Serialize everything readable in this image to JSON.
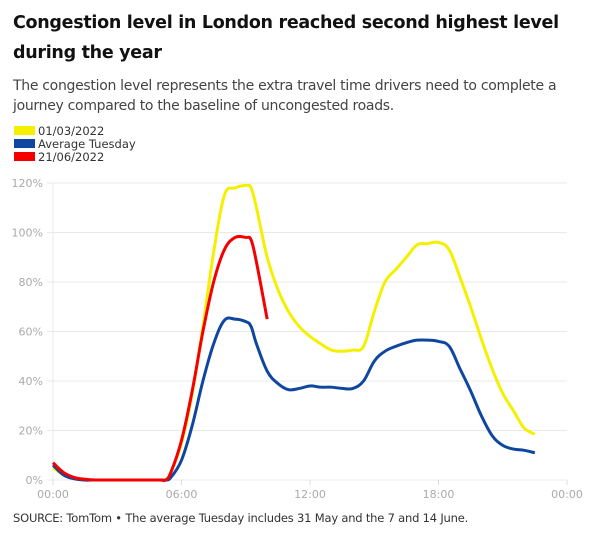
{
  "chart_data": {
    "type": "line",
    "title": "Congestion level in London reached second highest level during the year",
    "subtitle": "The congestion level represents the extra travel time drivers need to complete a journey compared to the baseline of uncongested roads.",
    "xlabel": "",
    "ylabel": "",
    "x_ticks": [
      "00:00",
      "06:00",
      "12:00",
      "18:00",
      "00:00"
    ],
    "y_ticks": [
      "0%",
      "20%",
      "40%",
      "60%",
      "80%",
      "100%",
      "120%"
    ],
    "xlim_hours": [
      0,
      24
    ],
    "ylim": [
      0,
      120
    ],
    "grid": true,
    "legend_position": "top-left",
    "series": [
      {
        "name": "01/03/2022",
        "color": "#f5f000",
        "x_hours": [
          0,
          0.5,
          1,
          1.5,
          2,
          3,
          4,
          5,
          5.25,
          5.5,
          6,
          6.5,
          7,
          7.5,
          8,
          8.5,
          9,
          9.25,
          9.5,
          10,
          10.5,
          11,
          11.5,
          12,
          12.5,
          13,
          13.5,
          14,
          14.5,
          15,
          15.5,
          16,
          16.5,
          17,
          17.5,
          18,
          18.5,
          19,
          19.5,
          20,
          20.5,
          21,
          21.5,
          22,
          22.5
        ],
        "values": [
          5,
          2,
          0.5,
          0,
          0,
          0,
          0,
          0,
          0,
          3,
          15,
          35,
          62,
          92,
          115,
          118,
          119,
          118,
          110,
          90,
          77,
          68,
          62,
          58,
          55,
          52.5,
          52,
          52.5,
          54,
          68,
          80,
          85,
          90,
          95,
          95.5,
          96,
          93,
          82,
          70,
          57,
          45,
          35,
          28,
          21,
          18.5
        ]
      },
      {
        "name": "Average Tuesday",
        "color": "#0f47a0",
        "x_hours": [
          0,
          0.5,
          1,
          1.5,
          2,
          3,
          4,
          5,
          5.25,
          5.5,
          6,
          6.5,
          7,
          7.5,
          8,
          8.5,
          9,
          9.25,
          9.5,
          10,
          10.5,
          11,
          11.5,
          12,
          12.5,
          13,
          13.5,
          14,
          14.5,
          15,
          15.5,
          16,
          16.5,
          17,
          17.5,
          18,
          18.5,
          19,
          19.5,
          20,
          20.5,
          21,
          21.5,
          22,
          22.5
        ],
        "values": [
          6,
          2,
          0.5,
          0,
          0,
          0,
          0,
          0,
          0,
          1,
          8,
          22,
          40,
          55,
          64.5,
          65,
          64,
          62,
          55,
          44,
          39,
          36.5,
          37,
          38,
          37.5,
          37.5,
          37,
          37,
          40,
          48,
          52,
          54,
          55.5,
          56.5,
          56.5,
          56,
          54,
          45,
          36,
          26,
          18,
          14,
          12.5,
          12,
          11
        ]
      },
      {
        "name": "21/06/2022",
        "color": "#f50000",
        "x_hours": [
          0,
          0.5,
          1,
          1.5,
          2,
          3,
          4,
          5,
          5.25,
          5.5,
          6,
          6.5,
          7,
          7.5,
          8,
          8.5,
          9,
          9.25,
          9.5,
          10
        ],
        "values": [
          7,
          3,
          1,
          0.3,
          0,
          0,
          0,
          0,
          0,
          3,
          16,
          36,
          60,
          80,
          93,
          98,
          98,
          97,
          88,
          65
        ]
      }
    ]
  },
  "source": "SOURCE: TomTom • The average Tuesday includes 31 May and the 7 and 14 June."
}
